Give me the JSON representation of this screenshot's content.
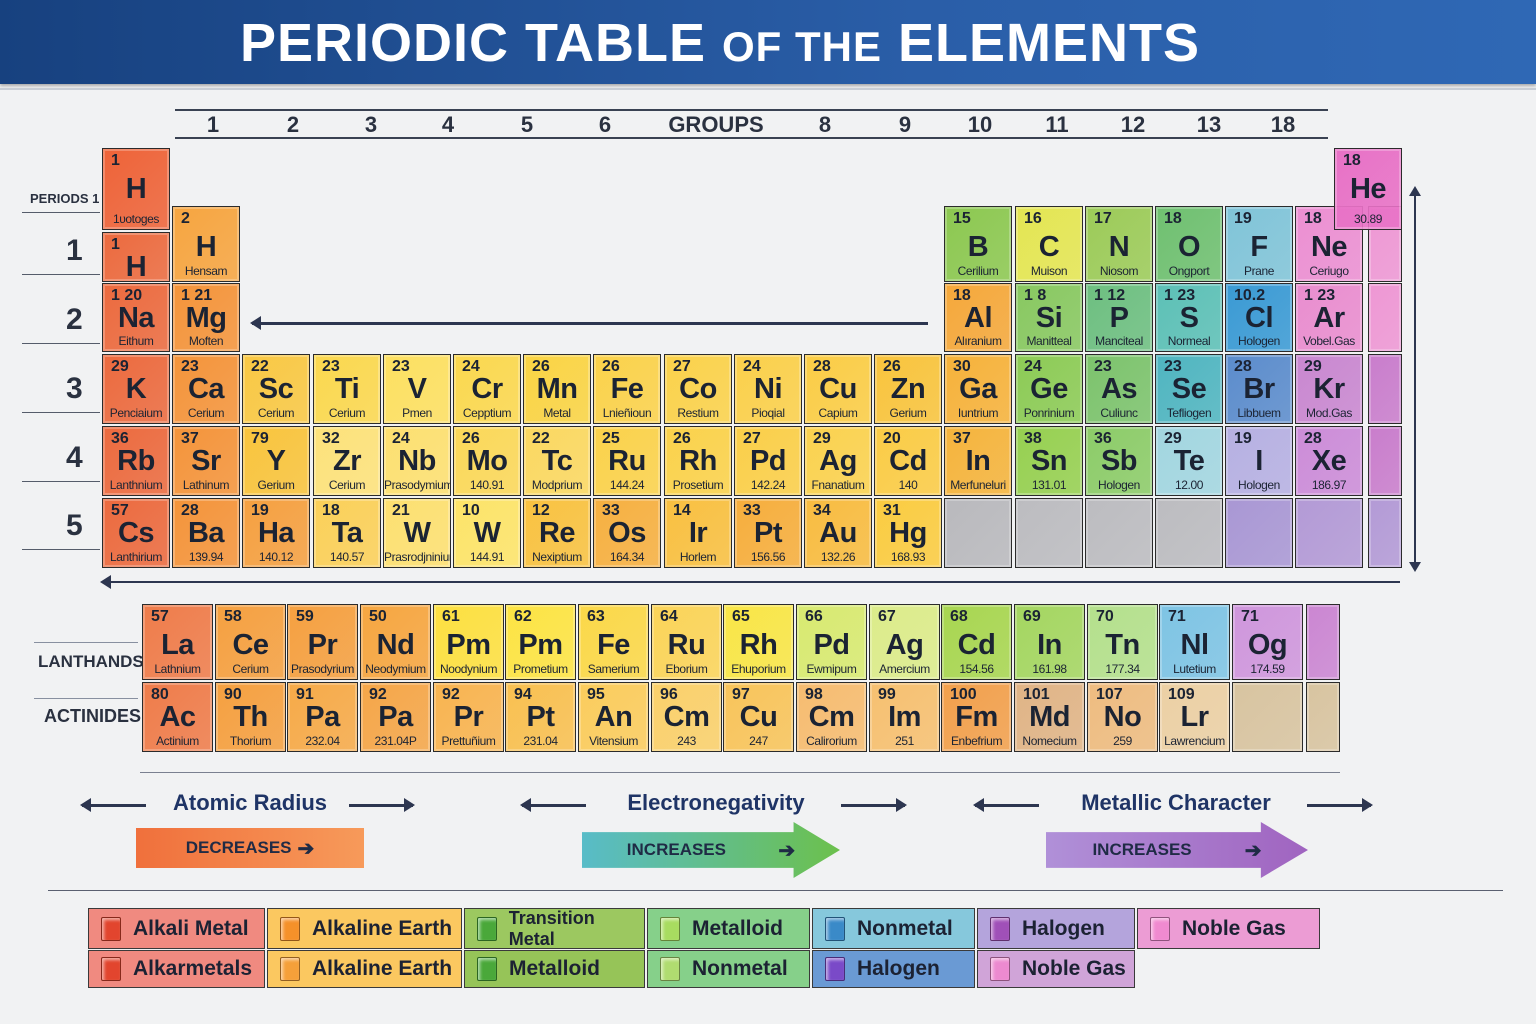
{
  "header": {
    "title_part1": "PERIODIC TABLE ",
    "title_part2": "OF THE",
    "title_part3": " ELEMENTS"
  },
  "groups": {
    "labels": [
      "1",
      "2",
      "3",
      "4",
      "5",
      "6",
      "GROUPS",
      "8",
      "9",
      "10",
      "11",
      "12",
      "13",
      "18"
    ]
  },
  "periods": {
    "labels": [
      "PERIODS 1",
      "1",
      "2",
      "3",
      "4",
      "5"
    ]
  },
  "table": {
    "top": [
      {
        "n": "1",
        "s": "H",
        "l": "1υotoges",
        "c": "#ee6338"
      },
      {
        "n": "18",
        "s": "He",
        "l": "30.89",
        "c": "#e871c6"
      }
    ],
    "rows": [
      [
        {
          "n": "1",
          "s": "H",
          "l": "",
          "c": "#ec6a3e"
        },
        {
          "n": "2",
          "s": "H",
          "l": "Hensam",
          "c": "#f6a540"
        },
        {
          "n": "15",
          "s": "B",
          "l": "Cerilium",
          "c": "#8cc850"
        },
        {
          "n": "16",
          "s": "C",
          "l": "Muison",
          "c": "#e4e652"
        },
        {
          "n": "17",
          "s": "N",
          "l": "Niosom",
          "c": "#9ccb58"
        },
        {
          "n": "18",
          "s": "O",
          "l": "Ongport",
          "c": "#6fc070"
        },
        {
          "n": "19",
          "s": "F",
          "l": "Prane",
          "c": "#80c4d8"
        },
        {
          "n": "18",
          "s": "Ne",
          "l": "Ceriugo",
          "c": "#ec8fd2"
        },
        {
          "c": "#ee97d4"
        }
      ],
      [
        {
          "n": "1 20",
          "s": "Na",
          "l": "Eithum",
          "c": "#ec6a3e"
        },
        {
          "n": "1 21",
          "s": "Mg",
          "l": "Moften",
          "c": "#f4943a"
        },
        {
          "n": "18",
          "s": "Al",
          "l": "Alıranium",
          "c": "#f5a83a"
        },
        {
          "n": "1 8",
          "s": "Si",
          "l": "Manitteal",
          "c": "#88c860"
        },
        {
          "n": "1 12",
          "s": "P",
          "l": "Manciteal",
          "c": "#6dbf80"
        },
        {
          "n": "1 23",
          "s": "S",
          "l": "Normeal",
          "c": "#5cc0b6"
        },
        {
          "n": "10.2",
          "s": "Cl",
          "l": "Hologen",
          "c": "#3a9ad4"
        },
        {
          "n": "1 23",
          "s": "Ar",
          "l": "Vobel.Gas",
          "c": "#e98dcf"
        },
        {
          "c": "#ee97d4"
        }
      ],
      [
        {
          "n": "29",
          "s": "K",
          "l": "Penciaium",
          "c": "#ec6a3e"
        },
        {
          "n": "23",
          "s": "Ca",
          "l": "Cerium",
          "c": "#f4943a"
        },
        {
          "n": "22",
          "s": "Sc",
          "l": "Cerium",
          "c": "#f9c843"
        },
        {
          "n": "23",
          "s": "Ti",
          "l": "Cerium",
          "c": "#fbd84e"
        },
        {
          "n": "23",
          "s": "V",
          "l": "Pmen",
          "c": "#fde060"
        },
        {
          "n": "24",
          "s": "Cr",
          "l": "Cepptium",
          "c": "#fbd84e"
        },
        {
          "n": "26",
          "s": "Mn",
          "l": "Metal",
          "c": "#fad443"
        },
        {
          "n": "26",
          "s": "Fe",
          "l": "Lnieñioun",
          "c": "#fbd24a"
        },
        {
          "n": "27",
          "s": "Co",
          "l": "Restium",
          "c": "#fbd24a"
        },
        {
          "n": "24",
          "s": "Ni",
          "l": "Pioqial",
          "c": "#fbd04a"
        },
        {
          "n": "28",
          "s": "Cu",
          "l": "Capium",
          "c": "#fbcd45"
        },
        {
          "n": "26",
          "s": "Zn",
          "l": "Gerium",
          "c": "#f9c43c"
        },
        {
          "n": "30",
          "s": "Ga",
          "l": "Iuntrium",
          "c": "#f6b23a"
        },
        {
          "n": "24",
          "s": "Ge",
          "l": "Ponrinium",
          "c": "#8ccb55"
        },
        {
          "n": "23",
          "s": "As",
          "l": "Culiunc",
          "c": "#7cc36c"
        },
        {
          "n": "23",
          "s": "Se",
          "l": "Tefliogen",
          "c": "#4fb5c0"
        },
        {
          "n": "28",
          "s": "Br",
          "l": "Libbuem",
          "c": "#5b8ccc"
        },
        {
          "n": "29",
          "s": "Kr",
          "l": "Mod.Gas",
          "c": "#c987d0"
        },
        {
          "c": "#c97dcc"
        }
      ],
      [
        {
          "n": "36",
          "s": "Rb",
          "l": "Lanthnium",
          "c": "#ec6a3e"
        },
        {
          "n": "37",
          "s": "Sr",
          "l": "Lathinum",
          "c": "#f4943a"
        },
        {
          "n": "79",
          "s": "Y",
          "l": "Gerium",
          "c": "#f9c43c"
        },
        {
          "n": "32",
          "s": "Zr",
          "l": "Cerium",
          "c": "#fde27a"
        },
        {
          "n": "24",
          "s": "Nb",
          "l": "Prasodymium",
          "c": "#fde070"
        },
        {
          "n": "26",
          "s": "Mo",
          "l": "140.91",
          "c": "#fbd858"
        },
        {
          "n": "22",
          "s": "Tc",
          "l": "Modprium",
          "c": "#fbd860"
        },
        {
          "n": "25",
          "s": "Ru",
          "l": "144.24",
          "c": "#fbd24a"
        },
        {
          "n": "26",
          "s": "Rh",
          "l": "Prosetium",
          "c": "#fbd24a"
        },
        {
          "n": "27",
          "s": "Pd",
          "l": "142.24",
          "c": "#fbcf48"
        },
        {
          "n": "29",
          "s": "Ag",
          "l": "Fnanatium",
          "c": "#fbd24e"
        },
        {
          "n": "20",
          "s": "Cd",
          "l": "140",
          "c": "#fbcc45"
        },
        {
          "n": "37",
          "s": "In",
          "l": "Merfuneluri",
          "c": "#f5b43c"
        },
        {
          "n": "38",
          "s": "Sn",
          "l": "131.01",
          "c": "#96d050"
        },
        {
          "n": "36",
          "s": "Sb",
          "l": "Hologen",
          "c": "#8ccc68"
        },
        {
          "n": "29",
          "s": "Te",
          "l": "12.00",
          "c": "#a2d6e0"
        },
        {
          "n": "19",
          "s": "I",
          "l": "Hologen",
          "c": "#b6b0e2"
        },
        {
          "n": "28",
          "s": "Xe",
          "l": "186.97",
          "c": "#cc8cd8"
        },
        {
          "c": "#c97dcc"
        }
      ],
      [
        {
          "n": "57",
          "s": "Cs",
          "l": "Lanthirium",
          "c": "#ec6a3e"
        },
        {
          "n": "28",
          "s": "Ba",
          "l": "139.94",
          "c": "#f4943a"
        },
        {
          "n": "19",
          "s": "Ha",
          "l": "140.12",
          "c": "#f5a040"
        },
        {
          "n": "18",
          "s": "Ta",
          "l": "140.57",
          "c": "#fbd058"
        },
        {
          "n": "21",
          "s": "W",
          "l": "Prasrodjninium",
          "c": "#fde070"
        },
        {
          "n": "10",
          "s": "W",
          "l": "144.91",
          "c": "#fde468"
        },
        {
          "n": "12",
          "s": "Re",
          "l": "Nexiptium",
          "c": "#f9c240"
        },
        {
          "n": "33",
          "s": "Os",
          "l": "164.34",
          "c": "#f6b040"
        },
        {
          "n": "14",
          "s": "Ir",
          "l": "Horlem",
          "c": "#f9c040"
        },
        {
          "n": "33",
          "s": "Pt",
          "l": "156.56",
          "c": "#f6ae3c"
        },
        {
          "n": "34",
          "s": "Au",
          "l": "132.26",
          "c": "#f8bc40"
        },
        {
          "n": "31",
          "s": "Hg",
          "l": "168.93",
          "c": "#fbcc40"
        },
        {
          "c": "#b9b9bd"
        },
        {
          "c": "#bcbcc0"
        },
        {
          "c": "#bcbcc0"
        },
        {
          "c": "#bcbcc0"
        },
        {
          "c": "#a997d4"
        },
        {
          "c": "#b39ad6"
        },
        {
          "c": "#b39ad6"
        }
      ]
    ]
  },
  "lanthanides": {
    "label": "LANTHANDS",
    "cells": [
      {
        "n": "57",
        "s": "La",
        "l": "Lathnium",
        "c": "#ef7c4a"
      },
      {
        "n": "58",
        "s": "Ce",
        "l": "Cerium",
        "c": "#f5a040"
      },
      {
        "n": "59",
        "s": "Pr",
        "l": "Prasodyrium",
        "c": "#f5a040"
      },
      {
        "n": "50",
        "s": "Nd",
        "l": "Neodymium",
        "c": "#f6a640"
      },
      {
        "n": "61",
        "s": "Pm",
        "l": "Noodynium",
        "c": "#fde040"
      },
      {
        "n": "62",
        "s": "Pm",
        "l": "Prometium",
        "c": "#fde443"
      },
      {
        "n": "63",
        "s": "Fe",
        "l": "Samerium",
        "c": "#fbd848"
      },
      {
        "n": "64",
        "s": "Ru",
        "l": "Eborium",
        "c": "#fbd458"
      },
      {
        "n": "65",
        "s": "Rh",
        "l": "Ehuporium",
        "c": "#f9e646"
      },
      {
        "n": "66",
        "s": "Pd",
        "l": "Ewmipum",
        "c": "#d8ea70"
      },
      {
        "n": "67",
        "s": "Ag",
        "l": "Amercium",
        "c": "#dcec8a"
      },
      {
        "n": "68",
        "s": "Cd",
        "l": "154.56",
        "c": "#a8d650"
      },
      {
        "n": "69",
        "s": "In",
        "l": "161.98",
        "c": "#a4d660"
      },
      {
        "n": "70",
        "s": "Tn",
        "l": "177.34",
        "c": "#b4e08c"
      },
      {
        "n": "71",
        "s": "Nl",
        "l": "Lutetium",
        "c": "#7ec4e4"
      },
      {
        "n": "71",
        "s": "Og",
        "l": "174.59",
        "c": "#cf96dc"
      },
      {
        "c": "#cb86d2"
      }
    ]
  },
  "actinides": {
    "label": "ACTINIDES",
    "cells": [
      {
        "n": "80",
        "s": "Ac",
        "l": "Actinium",
        "c": "#ef7c4a"
      },
      {
        "n": "90",
        "s": "Th",
        "l": "Thorium",
        "c": "#f5a040"
      },
      {
        "n": "91",
        "s": "Pa",
        "l": "232.04",
        "c": "#f6aa48"
      },
      {
        "n": "92",
        "s": "Pa",
        "l": "231.04P",
        "c": "#f5a648"
      },
      {
        "n": "92",
        "s": "Pr",
        "l": "Prettuñium",
        "c": "#f8b450"
      },
      {
        "n": "94",
        "s": "Pt",
        "l": "231.04",
        "c": "#f9c050"
      },
      {
        "n": "95",
        "s": "An",
        "l": "Vitensium",
        "c": "#fbcc5c"
      },
      {
        "n": "96",
        "s": "Cm",
        "l": "243",
        "c": "#fad06a"
      },
      {
        "n": "97",
        "s": "Cu",
        "l": "247",
        "c": "#f8c45a"
      },
      {
        "n": "98",
        "s": "Cm",
        "l": "Calirorium",
        "c": "#f6bc70"
      },
      {
        "n": "99",
        "s": "Im",
        "l": "251",
        "c": "#f6c070"
      },
      {
        "n": "100",
        "s": "Fm",
        "l": "Enbefrium",
        "c": "#f2a04c"
      },
      {
        "n": "101",
        "s": "Md",
        "l": "Nomecium",
        "c": "#e0b486"
      },
      {
        "n": "107",
        "s": "No",
        "l": "259",
        "c": "#eebc80"
      },
      {
        "n": "109",
        "s": "Lr",
        "l": "Lawrencium",
        "c": "#ecd0a4"
      },
      {
        "c": "#d8c4a0"
      },
      {
        "c": "#d8c4a0"
      }
    ]
  },
  "trends": [
    {
      "title": "Atomic Radius",
      "label": "DECREASES",
      "c1": "#f0703c",
      "c2": "#f79a5a"
    },
    {
      "title": "Electronegativity",
      "label": "INCREASES",
      "c1": "#58bcc8",
      "c2": "#6cc04c"
    },
    {
      "title": "Metallic Character",
      "label": "INCREASES",
      "c1": "#b090d8",
      "c2": "#a064c0"
    }
  ],
  "legend": {
    "row1": [
      {
        "label": "Alkali Metal",
        "bg": "#f08a80",
        "sw": "#e2452e"
      },
      {
        "label": "Alkaline Earth",
        "bg": "#fbc860",
        "sw": "#f5912a"
      },
      {
        "label": "Transition Metal",
        "bg": "#9cc860",
        "sw": "#4aa83a"
      },
      {
        "label": "Metalloid",
        "bg": "#86d08a",
        "sw": "#a8dc60"
      },
      {
        "label": "Nonmetal",
        "bg": "#86c8dc",
        "sw": "#3a8ac8"
      },
      {
        "label": "Halogen",
        "bg": "#b4a4dc",
        "sw": "#a050b8"
      },
      {
        "label": "Noble Gas",
        "bg": "#ec9cd4",
        "sw": "#f08ad0"
      }
    ],
    "row2": [
      {
        "label": "Alkarmetals",
        "bg": "#f08a80",
        "sw": "#e2452e"
      },
      {
        "label": "Alkaline Earth",
        "bg": "#fbc860",
        "sw": "#f5a03a"
      },
      {
        "label": "Metalloid",
        "bg": "#96c458",
        "sw": "#4aa83a"
      },
      {
        "label": "Nonmetal",
        "bg": "#86d08a",
        "sw": "#b0dc70"
      },
      {
        "label": "Halogen",
        "bg": "#6a9ad4",
        "sw": "#7a4ac8"
      },
      {
        "label": "Noble Gas",
        "bg": "#d0a4d8",
        "sw": "#ec8ad0"
      }
    ]
  }
}
